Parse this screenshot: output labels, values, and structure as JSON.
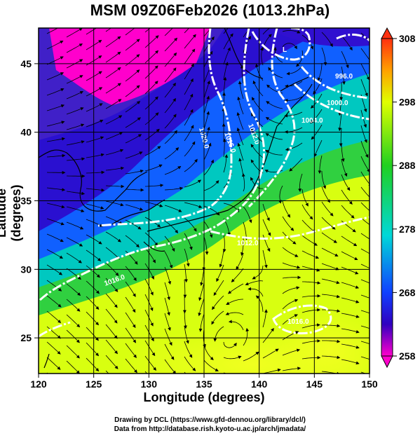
{
  "title": "MSM 09Z06Feb2026 (1013.2hPa)",
  "xlabel": "Longitude (degrees)",
  "ylabel": "Latitude  (degrees)",
  "credits": {
    "line1": "Drawing by DCL (https://www.gfd-dennou.org/library/dcl/)",
    "line2": "Data from http://database.rish.kyoto-u.ac.jp/arch/jmadata/"
  },
  "map": {
    "lon_range": [
      120,
      150
    ],
    "lat_range": [
      22.4,
      47.6
    ],
    "lon_ticks": [
      "120",
      "125",
      "130",
      "135",
      "140",
      "145",
      "150"
    ],
    "lat_ticks": [
      "25",
      "30",
      "35",
      "40",
      "45"
    ],
    "colorbar": {
      "min": 258,
      "max": 308,
      "ticks": [
        "258",
        "268",
        "278",
        "288",
        "298",
        "308"
      ]
    },
    "contour_labels": [
      "996.0",
      "1000.0",
      "1004.0",
      "1012.0",
      "1016.0",
      "1020.0",
      "1012.0",
      "1016.0",
      "1016.0"
    ],
    "low_center_label": "L"
  },
  "colors": {
    "cold": "#ff00cc",
    "cool": "#2a00c8",
    "mid": "#00c8d0",
    "warm": "#30d030",
    "hot": "#e8ff00",
    "contour": "#ffffff"
  }
}
